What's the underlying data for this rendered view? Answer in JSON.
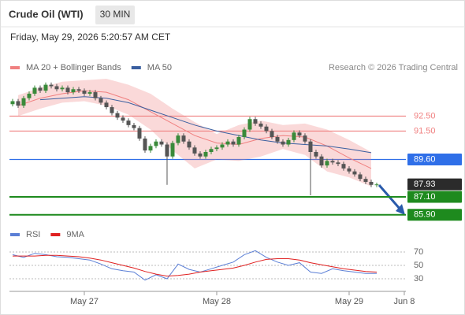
{
  "header": {
    "instrument": "Crude Oil (WTI)",
    "timeframe": "30 MIN",
    "timestamp": "Friday, May 29, 2026 5:20:57 AM CET"
  },
  "chart_data": [
    {
      "type": "candlestick",
      "copyright": "Research © 2026 Trading Central",
      "up_color": "#3a8a3a",
      "down_color": "#555555",
      "ylim": [
        85.2,
        95.0
      ],
      "xlim": [
        -13.57,
        58.29
      ],
      "x": [
        -13,
        -12,
        -11,
        -10,
        -9,
        -8,
        -7,
        -6,
        -5,
        -4,
        -3,
        -2,
        -1,
        0,
        1,
        2,
        3,
        4,
        5,
        6,
        7,
        8,
        9,
        10,
        11,
        12,
        13,
        14,
        15,
        16,
        17,
        18,
        19,
        20,
        21,
        22,
        23,
        24,
        25,
        26,
        27,
        28,
        29,
        30,
        31,
        32,
        33,
        34,
        35,
        36,
        37,
        38,
        39,
        40,
        41,
        42,
        43,
        44,
        45,
        46,
        47,
        48,
        49,
        50,
        51,
        52,
        53
      ],
      "open": [
        93.3,
        93.5,
        93.2,
        93.7,
        94.0,
        94.4,
        94.2,
        94.6,
        94.5,
        94.3,
        94.4,
        94.1,
        94.3,
        94.2,
        94.0,
        94.1,
        93.7,
        93.4,
        93.1,
        92.7,
        92.4,
        92.2,
        91.9,
        91.7,
        91.0,
        90.2,
        90.5,
        90.8,
        90.6,
        89.8,
        90.7,
        91.2,
        90.8,
        90.4,
        90.0,
        89.8,
        90.1,
        90.3,
        90.4,
        90.6,
        90.8,
        90.6,
        91.1,
        91.6,
        92.3,
        92.0,
        91.8,
        91.5,
        91.1,
        90.8,
        90.6,
        90.9,
        91.4,
        91.2,
        90.8,
        90.1,
        89.8,
        89.2,
        89.5,
        89.4,
        89.3,
        89.0,
        88.8,
        88.6,
        88.3,
        88.1,
        87.9
      ],
      "high": [
        93.65,
        93.65,
        93.85,
        94.15,
        94.55,
        94.55,
        94.75,
        94.75,
        94.65,
        94.55,
        94.55,
        94.45,
        94.45,
        94.35,
        94.25,
        94.25,
        93.85,
        93.55,
        93.25,
        92.85,
        92.55,
        92.35,
        92.05,
        91.85,
        91.15,
        90.65,
        90.95,
        90.95,
        90.75,
        90.85,
        91.35,
        91.35,
        90.95,
        90.55,
        90.15,
        90.25,
        90.45,
        90.55,
        90.75,
        90.95,
        90.95,
        91.25,
        91.75,
        92.45,
        92.45,
        92.15,
        91.95,
        91.65,
        91.25,
        90.95,
        91.05,
        91.55,
        91.55,
        91.35,
        90.95,
        90.25,
        89.95,
        89.65,
        89.65,
        89.55,
        89.45,
        89.15,
        88.95,
        88.75,
        88.45,
        88.25,
        88.05
      ],
      "low": [
        93.15,
        93.05,
        93.05,
        93.55,
        93.85,
        94.05,
        94.05,
        94.35,
        94.15,
        94.15,
        93.95,
        93.95,
        94.05,
        93.85,
        93.85,
        93.55,
        93.25,
        92.95,
        92.55,
        92.25,
        92.05,
        91.75,
        91.55,
        90.85,
        90.05,
        90.05,
        90.35,
        90.45,
        87.9,
        89.65,
        90.55,
        90.65,
        90.25,
        89.85,
        89.65,
        89.65,
        89.95,
        90.15,
        90.25,
        90.45,
        90.45,
        90.45,
        90.95,
        91.45,
        91.85,
        91.65,
        91.35,
        90.95,
        90.65,
        90.45,
        90.45,
        90.75,
        91.05,
        90.65,
        87.2,
        89.65,
        89.05,
        89.05,
        89.25,
        89.15,
        88.85,
        88.65,
        88.45,
        88.15,
        87.95,
        87.75,
        87.75
      ],
      "close": [
        93.5,
        93.2,
        93.7,
        94.0,
        94.4,
        94.2,
        94.6,
        94.5,
        94.3,
        94.4,
        94.1,
        94.3,
        94.2,
        94.0,
        94.1,
        93.7,
        93.4,
        93.1,
        92.7,
        92.4,
        92.2,
        91.9,
        91.7,
        91.0,
        90.2,
        90.5,
        90.8,
        90.6,
        89.8,
        90.7,
        91.2,
        90.8,
        90.4,
        90.0,
        89.8,
        90.1,
        90.3,
        90.4,
        90.6,
        90.8,
        90.6,
        91.1,
        91.6,
        92.3,
        92.0,
        91.8,
        91.5,
        91.1,
        90.8,
        90.6,
        90.9,
        91.4,
        91.2,
        90.8,
        90.1,
        89.8,
        89.2,
        89.5,
        89.4,
        89.3,
        89.0,
        88.8,
        88.6,
        88.3,
        88.1,
        87.9,
        87.93
      ],
      "series": [
        {
          "name": "MA 20 + Bollinger Bands",
          "color": "#f08080",
          "x": [
            -12,
            -8,
            -4,
            0,
            4,
            8,
            12,
            16,
            20,
            24,
            28,
            32,
            36,
            40,
            44,
            48,
            52
          ],
          "values": [
            93.2,
            93.7,
            94.0,
            94.2,
            94.1,
            93.6,
            92.8,
            92.0,
            91.2,
            90.7,
            90.6,
            91.0,
            91.2,
            91.1,
            90.5,
            89.7,
            89.0
          ],
          "upper": [
            93.9,
            94.4,
            94.8,
            94.9,
            95.0,
            94.6,
            94.0,
            93.0,
            92.1,
            91.3,
            91.9,
            92.2,
            91.9,
            92.0,
            91.6,
            90.9,
            90.1
          ],
          "lower": [
            92.5,
            93.0,
            93.4,
            93.5,
            93.2,
            92.6,
            91.6,
            90.2,
            89.0,
            89.6,
            89.5,
            89.8,
            90.3,
            89.9,
            88.8,
            88.4,
            87.8
          ]
        },
        {
          "name": "MA 50",
          "color": "#3a5fa0",
          "x": [
            -8,
            -4,
            0,
            4,
            8,
            12,
            16,
            20,
            24,
            28,
            32,
            36,
            40,
            44,
            48,
            52
          ],
          "values": [
            93.6,
            93.7,
            93.8,
            93.7,
            93.4,
            92.9,
            92.4,
            91.9,
            91.5,
            91.2,
            90.9,
            90.7,
            90.6,
            90.5,
            90.3,
            90.05
          ]
        }
      ],
      "levels": [
        {
          "value": 92.5,
          "label": "92.50",
          "color": "#f08080",
          "boxed": false,
          "line": true
        },
        {
          "value": 91.5,
          "label": "91.50",
          "color": "#f08080",
          "boxed": false,
          "line": true
        },
        {
          "value": 89.6,
          "label": "89.60",
          "color": "#2f6fe8",
          "boxed": true,
          "line": true
        },
        {
          "value": 87.93,
          "label": "87.93",
          "color": "#2b2b2b",
          "boxed": true,
          "line": false
        },
        {
          "value": 87.1,
          "label": "87.10",
          "color": "#1e8a1e",
          "boxed": true,
          "line": true
        },
        {
          "value": 85.9,
          "label": "85.90",
          "color": "#1e8a1e",
          "boxed": true,
          "line": true
        }
      ]
    },
    {
      "type": "line",
      "ylim": [
        11.2,
        81.8
      ],
      "yticks": [
        70,
        50,
        30
      ],
      "xlim": [
        -13.57,
        58.29
      ],
      "xticks": [
        {
          "value": 0,
          "label": "May 27"
        },
        {
          "value": 24,
          "label": "May 28"
        },
        {
          "value": 48,
          "label": "May 29"
        },
        {
          "value": 58,
          "label": "Jun 8"
        }
      ],
      "x": [
        -13,
        -11,
        -9,
        -7,
        -5,
        -3,
        -1,
        1,
        3,
        5,
        7,
        9,
        11,
        13,
        15,
        17,
        19,
        21,
        23,
        25,
        27,
        29,
        31,
        33,
        35,
        37,
        39,
        41,
        43,
        45,
        47,
        49,
        51,
        53
      ],
      "series": [
        {
          "name": "RSI",
          "color": "#5b7fd6",
          "values": [
            66,
            62,
            68,
            66,
            63,
            62,
            60,
            58,
            52,
            45,
            42,
            40,
            28,
            36,
            30,
            52,
            44,
            40,
            45,
            50,
            55,
            66,
            72,
            62,
            55,
            50,
            54,
            40,
            38,
            45,
            42,
            40,
            38,
            38
          ]
        },
        {
          "name": "9MA",
          "color": "#e02020",
          "values": [
            64,
            64,
            64,
            65,
            65,
            64,
            63,
            61,
            58,
            54,
            50,
            46,
            41,
            37,
            34,
            35,
            37,
            40,
            42,
            44,
            46,
            50,
            55,
            59,
            60,
            60,
            58,
            54,
            51,
            48,
            45,
            43,
            41,
            40
          ]
        }
      ]
    }
  ]
}
